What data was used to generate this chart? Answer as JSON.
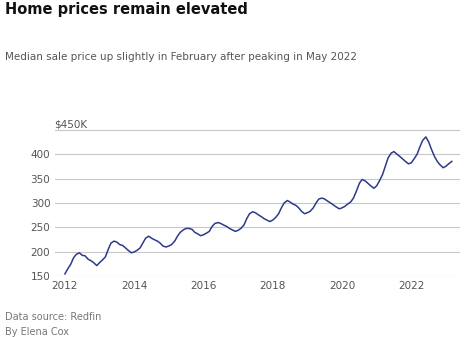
{
  "title": "Home prices remain elevated",
  "subtitle": "Median sale price up slightly in February after peaking in May 2022",
  "footnote1": "Data source: Redfin",
  "footnote2": "By Elena Cox",
  "ylabel_top": "$450K",
  "line_color": "#2d3a8c",
  "background_color": "#ffffff",
  "grid_color": "#c8c8c8",
  "xlim": [
    2011.7,
    2023.4
  ],
  "ylim": [
    150000,
    460000
  ],
  "yticks": [
    150000,
    200000,
    250000,
    300000,
    350000,
    400000
  ],
  "ytick_labels": [
    "150",
    "200",
    "250",
    "300",
    "350",
    "400"
  ],
  "xticks": [
    2012,
    2014,
    2016,
    2018,
    2020,
    2022
  ],
  "data": {
    "dates": [
      2012.0,
      2012.08,
      2012.17,
      2012.25,
      2012.33,
      2012.42,
      2012.5,
      2012.58,
      2012.67,
      2012.75,
      2012.83,
      2012.92,
      2013.0,
      2013.08,
      2013.17,
      2013.25,
      2013.33,
      2013.42,
      2013.5,
      2013.58,
      2013.67,
      2013.75,
      2013.83,
      2013.92,
      2014.0,
      2014.08,
      2014.17,
      2014.25,
      2014.33,
      2014.42,
      2014.5,
      2014.58,
      2014.67,
      2014.75,
      2014.83,
      2014.92,
      2015.0,
      2015.08,
      2015.17,
      2015.25,
      2015.33,
      2015.42,
      2015.5,
      2015.58,
      2015.67,
      2015.75,
      2015.83,
      2015.92,
      2016.0,
      2016.08,
      2016.17,
      2016.25,
      2016.33,
      2016.42,
      2016.5,
      2016.58,
      2016.67,
      2016.75,
      2016.83,
      2016.92,
      2017.0,
      2017.08,
      2017.17,
      2017.25,
      2017.33,
      2017.42,
      2017.5,
      2017.58,
      2017.67,
      2017.75,
      2017.83,
      2017.92,
      2018.0,
      2018.08,
      2018.17,
      2018.25,
      2018.33,
      2018.42,
      2018.5,
      2018.58,
      2018.67,
      2018.75,
      2018.83,
      2018.92,
      2019.0,
      2019.08,
      2019.17,
      2019.25,
      2019.33,
      2019.42,
      2019.5,
      2019.58,
      2019.67,
      2019.75,
      2019.83,
      2019.92,
      2020.0,
      2020.08,
      2020.17,
      2020.25,
      2020.33,
      2020.42,
      2020.5,
      2020.58,
      2020.67,
      2020.75,
      2020.83,
      2020.92,
      2021.0,
      2021.08,
      2021.17,
      2021.25,
      2021.33,
      2021.42,
      2021.5,
      2021.58,
      2021.67,
      2021.75,
      2021.83,
      2021.92,
      2022.0,
      2022.08,
      2022.17,
      2022.25,
      2022.33,
      2022.42,
      2022.5,
      2022.58,
      2022.67,
      2022.75,
      2022.83,
      2022.92,
      2023.0,
      2023.08,
      2023.17
    ],
    "prices": [
      155000,
      165000,
      175000,
      188000,
      195000,
      198000,
      193000,
      192000,
      185000,
      182000,
      178000,
      172000,
      178000,
      183000,
      190000,
      205000,
      218000,
      222000,
      220000,
      215000,
      213000,
      208000,
      203000,
      198000,
      200000,
      203000,
      208000,
      218000,
      228000,
      232000,
      228000,
      225000,
      222000,
      218000,
      212000,
      210000,
      212000,
      215000,
      222000,
      232000,
      240000,
      245000,
      248000,
      248000,
      246000,
      240000,
      237000,
      233000,
      235000,
      238000,
      242000,
      252000,
      258000,
      260000,
      258000,
      255000,
      252000,
      248000,
      245000,
      242000,
      244000,
      248000,
      255000,
      268000,
      278000,
      282000,
      280000,
      276000,
      272000,
      268000,
      265000,
      262000,
      265000,
      270000,
      278000,
      290000,
      300000,
      305000,
      302000,
      298000,
      295000,
      290000,
      283000,
      278000,
      280000,
      283000,
      290000,
      300000,
      308000,
      310000,
      308000,
      304000,
      300000,
      296000,
      292000,
      288000,
      290000,
      293000,
      298000,
      302000,
      310000,
      325000,
      340000,
      348000,
      345000,
      340000,
      335000,
      330000,
      335000,
      345000,
      358000,
      375000,
      392000,
      402000,
      405000,
      400000,
      395000,
      390000,
      385000,
      380000,
      382000,
      390000,
      400000,
      415000,
      428000,
      435000,
      425000,
      410000,
      395000,
      385000,
      378000,
      372000,
      375000,
      380000,
      385000
    ]
  }
}
